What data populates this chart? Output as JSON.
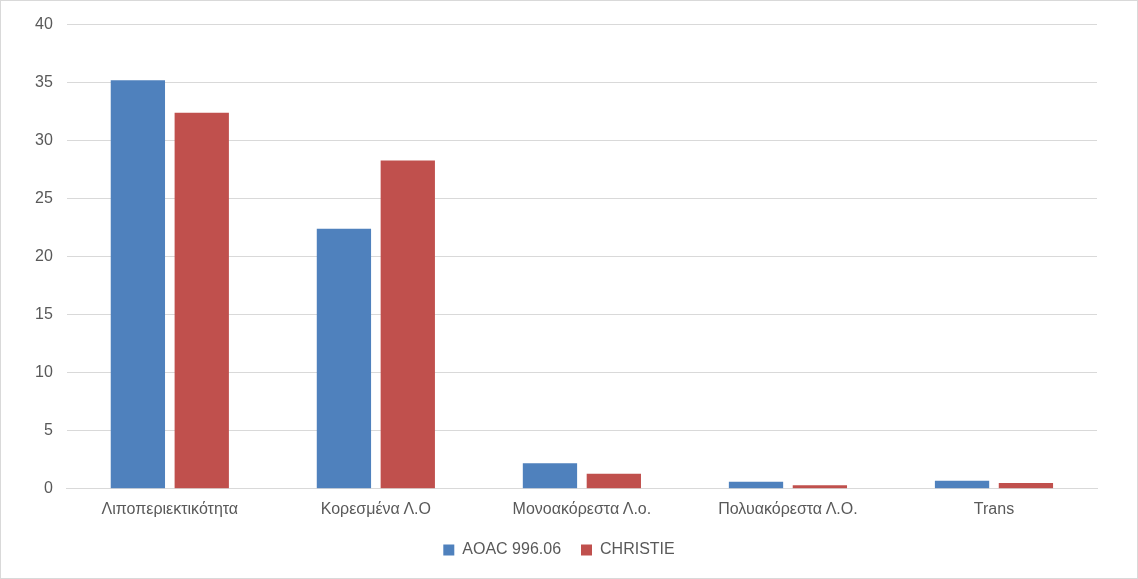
{
  "chart_data": {
    "type": "bar",
    "categories": [
      "Λιποπεριεκτικότητα",
      "Κορεσμένα Λ.Ο",
      "Μονοακόρεστα Λ.ο.",
      "Πολυακόρεστα Λ.Ο.",
      "Trans"
    ],
    "series": [
      {
        "name": "AOAC 996.06",
        "color": "#4f81bd",
        "values": [
          35.2,
          22.4,
          2.2,
          0.6,
          0.7
        ]
      },
      {
        "name": "CHRISTIE",
        "color": "#c0504d",
        "values": [
          32.4,
          28.3,
          1.3,
          0.3,
          0.5
        ]
      }
    ],
    "ylim": [
      0,
      40
    ],
    "yticks": [
      0,
      5,
      10,
      15,
      20,
      25,
      30,
      35,
      40
    ],
    "grid": "y",
    "legend": "bottom"
  }
}
